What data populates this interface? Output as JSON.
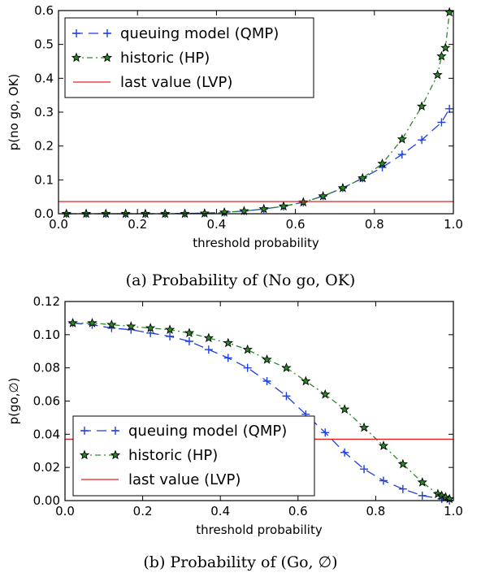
{
  "chart_data": [
    {
      "type": "line",
      "caption": "(a) Probability of (No go, OK)",
      "xlabel": "threshold probability",
      "ylabel": "p(no go, OK)",
      "xlim": [
        0,
        1.0
      ],
      "ylim": [
        0,
        0.6
      ],
      "xticks": [
        "0.0",
        "0.2",
        "0.4",
        "0.6",
        "0.8",
        "1.0"
      ],
      "yticks": [
        "0.0",
        "0.1",
        "0.2",
        "0.3",
        "0.4",
        "0.5",
        "0.6"
      ],
      "legend_position": "top-left",
      "grid": false,
      "series": [
        {
          "name": "queuing model (QMP)",
          "color": "#1f3fe0",
          "style": "dashed",
          "marker": "plus",
          "x": [
            0.02,
            0.07,
            0.12,
            0.17,
            0.22,
            0.27,
            0.32,
            0.37,
            0.42,
            0.47,
            0.52,
            0.57,
            0.62,
            0.67,
            0.72,
            0.77,
            0.82,
            0.87,
            0.92,
            0.97,
            0.99
          ],
          "y": [
            0.0,
            0.0,
            0.0,
            0.0,
            0.0,
            0.0,
            0.001,
            0.002,
            0.004,
            0.008,
            0.014,
            0.022,
            0.034,
            0.052,
            0.076,
            0.105,
            0.137,
            0.175,
            0.218,
            0.27,
            0.31
          ]
        },
        {
          "name": "historic (HP)",
          "color": "#2a8a2a",
          "style": "dashdot",
          "marker": "star",
          "x": [
            0.02,
            0.07,
            0.12,
            0.17,
            0.22,
            0.27,
            0.32,
            0.37,
            0.42,
            0.47,
            0.52,
            0.57,
            0.62,
            0.67,
            0.72,
            0.77,
            0.82,
            0.87,
            0.92,
            0.96,
            0.97,
            0.98,
            0.99
          ],
          "y": [
            0.0,
            0.0,
            0.0,
            0.0,
            0.0,
            0.0,
            0.0,
            0.001,
            0.004,
            0.008,
            0.014,
            0.022,
            0.034,
            0.052,
            0.076,
            0.105,
            0.148,
            0.22,
            0.317,
            0.41,
            0.465,
            0.49,
            0.595
          ]
        },
        {
          "name": "last value (LVP)",
          "color": "#e02020",
          "style": "solid",
          "marker": "none",
          "x": [
            0.0,
            1.0
          ],
          "y": [
            0.036,
            0.036
          ]
        }
      ]
    },
    {
      "type": "line",
      "caption": "(b) Probability of (Go, ∅)",
      "xlabel": "threshold probability",
      "ylabel": "p(go,∅)",
      "xlim": [
        0,
        1.0
      ],
      "ylim": [
        0,
        0.12
      ],
      "xticks": [
        "0.0",
        "0.2",
        "0.4",
        "0.6",
        "0.8",
        "1.0"
      ],
      "yticks": [
        "0.00",
        "0.02",
        "0.04",
        "0.06",
        "0.08",
        "0.10",
        "0.12"
      ],
      "legend_position": "bottom-left",
      "grid": false,
      "series": [
        {
          "name": "queuing model (QMP)",
          "color": "#1f3fe0",
          "style": "dashed",
          "marker": "plus",
          "x": [
            0.02,
            0.07,
            0.12,
            0.17,
            0.22,
            0.27,
            0.32,
            0.37,
            0.42,
            0.47,
            0.52,
            0.57,
            0.62,
            0.67,
            0.72,
            0.77,
            0.82,
            0.87,
            0.92,
            0.97,
            0.99
          ],
          "y": [
            0.107,
            0.106,
            0.104,
            0.103,
            0.101,
            0.099,
            0.096,
            0.091,
            0.086,
            0.08,
            0.072,
            0.063,
            0.052,
            0.041,
            0.029,
            0.019,
            0.012,
            0.007,
            0.003,
            0.001,
            0.0
          ]
        },
        {
          "name": "historic (HP)",
          "color": "#2a8a2a",
          "style": "dashdot",
          "marker": "star",
          "x": [
            0.02,
            0.07,
            0.12,
            0.17,
            0.22,
            0.27,
            0.32,
            0.37,
            0.42,
            0.47,
            0.52,
            0.57,
            0.62,
            0.67,
            0.72,
            0.77,
            0.82,
            0.87,
            0.92,
            0.96,
            0.97,
            0.98,
            0.99
          ],
          "y": [
            0.107,
            0.107,
            0.106,
            0.105,
            0.104,
            0.103,
            0.101,
            0.098,
            0.095,
            0.091,
            0.085,
            0.08,
            0.072,
            0.064,
            0.055,
            0.044,
            0.033,
            0.022,
            0.011,
            0.004,
            0.003,
            0.002,
            0.001
          ]
        },
        {
          "name": "last value (LVP)",
          "color": "#e02020",
          "style": "solid",
          "marker": "none",
          "x": [
            0.0,
            1.0
          ],
          "y": [
            0.037,
            0.037
          ]
        }
      ]
    }
  ]
}
